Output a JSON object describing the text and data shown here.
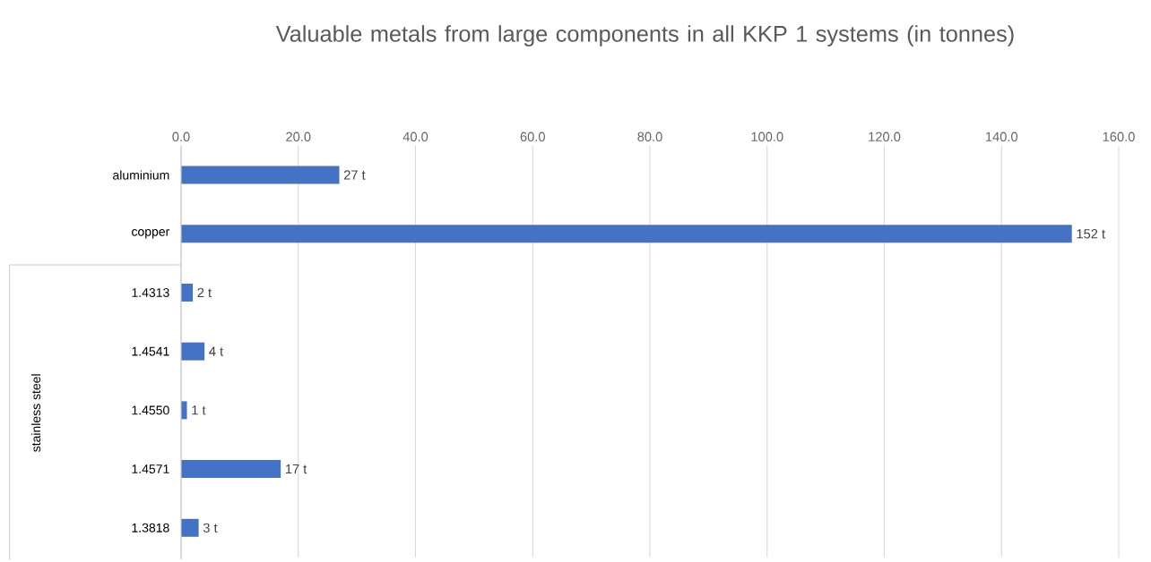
{
  "chart_data": {
    "type": "bar",
    "orientation": "horizontal",
    "title": "Valuable metals from large components in all KKP 1 systems (in tonnes)",
    "categories": [
      "aluminium",
      "copper",
      "1.4313",
      "1.4541",
      "1.4550",
      "1.4571",
      "1.3818"
    ],
    "values": [
      27,
      152,
      2,
      4,
      1,
      17,
      3
    ],
    "value_labels": [
      "27  t",
      "152  t",
      "2  t",
      "4  t",
      "1  t",
      "17  t",
      "3  t"
    ],
    "color": "#4472c4",
    "xlim": [
      0,
      160
    ],
    "xticks": [
      {
        "value": 0,
        "label": "0.0"
      },
      {
        "value": 20,
        "label": "20.0"
      },
      {
        "value": 40,
        "label": "40.0"
      },
      {
        "value": 60,
        "label": "60.0"
      },
      {
        "value": 80,
        "label": "80.0"
      },
      {
        "value": 100,
        "label": "100.0"
      },
      {
        "value": 120,
        "label": "120.0"
      },
      {
        "value": 140,
        "label": "140.0"
      },
      {
        "value": 160,
        "label": "160.0"
      }
    ],
    "grid": "x",
    "annotations": [
      "stainless steel"
    ]
  }
}
